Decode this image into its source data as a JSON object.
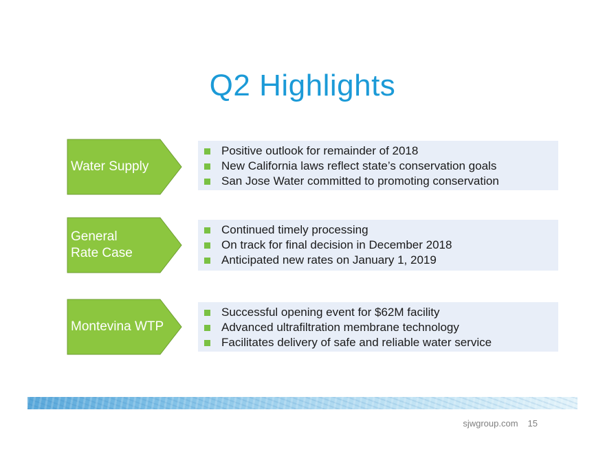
{
  "slide": {
    "title": "Q2 Highlights",
    "accent_color": "#1b9ad7",
    "arrow_color": "#8cc63f",
    "bullet_color": "#7ac143",
    "box_color": "#e8eef8"
  },
  "sections": [
    {
      "label_lines": [
        "Water Supply"
      ],
      "bullets": [
        "Positive outlook for remainder of 2018",
        "New California laws reflect state’s conservation goals",
        "San Jose Water committed to promoting conservation"
      ]
    },
    {
      "label_lines": [
        "General",
        "Rate Case"
      ],
      "bullets": [
        "Continued timely processing",
        "On track for final decision in December 2018",
        "Anticipated new rates on January 1, 2019"
      ]
    },
    {
      "label_lines": [
        "Montevina WTP"
      ],
      "bullets": [
        "Successful opening event for $62M facility",
        "Advanced ultrafiltration membrane technology",
        "Facilitates delivery of safe and reliable water service"
      ]
    }
  ],
  "footer": {
    "website": "sjwgroup.com",
    "page_number": "15"
  }
}
